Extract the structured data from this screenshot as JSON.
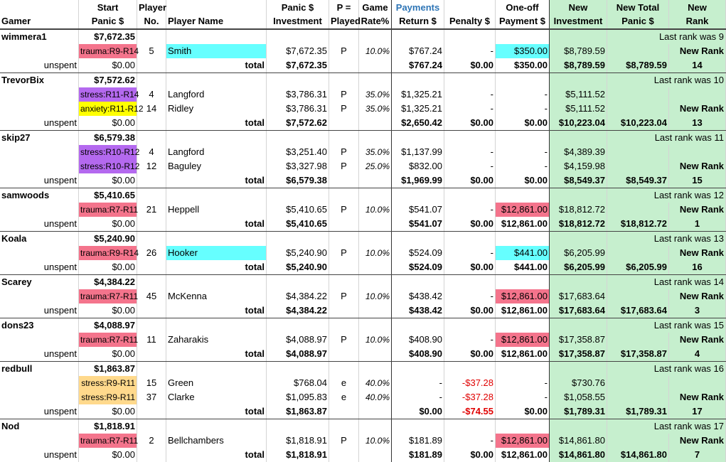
{
  "headers": {
    "gamer": "Gamer",
    "start_panic": [
      "Start",
      "Panic $"
    ],
    "player_no": [
      "Player",
      "No."
    ],
    "player_name": "Player Name",
    "panic_investment": [
      "Panic $",
      "Investment"
    ],
    "played": [
      "P =",
      "Played"
    ],
    "game_rate": [
      "Game",
      "Rate%"
    ],
    "payments": "Payments",
    "return": "Return $",
    "penalty": "Penalty $",
    "oneoff": [
      "One-off",
      "Payment $"
    ],
    "new_investment": [
      "New",
      "Investment"
    ],
    "new_total": [
      "New Total",
      "Panic $"
    ],
    "new_rank": [
      "New",
      "Rank"
    ]
  },
  "labels": {
    "unspent": "unspent",
    "total": "total",
    "new_rank": "New Rank"
  },
  "colors": {
    "trauma": "#f4748c",
    "stress_purple": "#b469ef",
    "anxiety": "#ffff00",
    "stress_orange": "#ffd98c",
    "hooker_cyan": "#66ffff",
    "green": "#c6efce",
    "negative": "#e00000",
    "payments_blue": "#2e75b6"
  },
  "groups": [
    {
      "gamer": "wimmera1",
      "start": "$7,672.35",
      "last_rank": "Last rank was 9",
      "players": [
        {
          "tag": "trauma:R9-R14",
          "tag_color": "trauma",
          "no": "5",
          "name": "Smith",
          "name_bg": "hooker_cyan",
          "investment": "$7,672.35",
          "played": "P",
          "rate": "10.0%",
          "return": "$767.24",
          "penalty": "-",
          "oneoff": "$350.00",
          "oneoff_bg": "hooker_cyan",
          "new_inv": "$8,789.59"
        }
      ],
      "unspent": "$0.00",
      "total_inv": "$7,672.35",
      "total_return": "$767.24",
      "total_penalty": "$0.00",
      "total_oneoff": "$350.00",
      "total_new_inv": "$8,789.59",
      "new_total": "$8,789.59",
      "rank": "14"
    },
    {
      "gamer": "TrevorBix",
      "start": "$7,572.62",
      "last_rank": "Last rank was 10",
      "players": [
        {
          "tag": "stress:R11-R14",
          "tag_color": "stress_purple",
          "no": "4",
          "name": "Langford",
          "investment": "$3,786.31",
          "played": "P",
          "rate": "35.0%",
          "return": "$1,325.21",
          "penalty": "-",
          "oneoff": "-",
          "new_inv": "$5,111.52"
        },
        {
          "tag": "anxiety:R11-R12",
          "tag_color": "anxiety",
          "no": "14",
          "name": "Ridley",
          "investment": "$3,786.31",
          "played": "P",
          "rate": "35.0%",
          "return": "$1,325.21",
          "penalty": "-",
          "oneoff": "-",
          "new_inv": "$5,111.52"
        }
      ],
      "unspent": "$0.00",
      "total_inv": "$7,572.62",
      "total_return": "$2,650.42",
      "total_penalty": "$0.00",
      "total_oneoff": "$0.00",
      "total_new_inv": "$10,223.04",
      "new_total": "$10,223.04",
      "rank": "13"
    },
    {
      "gamer": "skip27",
      "start": "$6,579.38",
      "last_rank": "Last rank was 11",
      "players": [
        {
          "tag": "stress:R10-R12",
          "tag_color": "stress_purple",
          "no": "4",
          "name": "Langford",
          "investment": "$3,251.40",
          "played": "P",
          "rate": "35.0%",
          "return": "$1,137.99",
          "penalty": "-",
          "oneoff": "-",
          "new_inv": "$4,389.39"
        },
        {
          "tag": "stress:R10-R12",
          "tag_color": "stress_purple",
          "no": "12",
          "name": "Baguley",
          "investment": "$3,327.98",
          "played": "P",
          "rate": "25.0%",
          "return": "$832.00",
          "penalty": "-",
          "oneoff": "-",
          "new_inv": "$4,159.98"
        }
      ],
      "unspent": "$0.00",
      "total_inv": "$6,579.38",
      "total_return": "$1,969.99",
      "total_penalty": "$0.00",
      "total_oneoff": "$0.00",
      "total_new_inv": "$8,549.37",
      "new_total": "$8,549.37",
      "rank": "15"
    },
    {
      "gamer": "samwoods",
      "start": "$5,410.65",
      "last_rank": "Last rank was 12",
      "players": [
        {
          "tag": "trauma:R7-R11",
          "tag_color": "trauma",
          "no": "21",
          "name": "Heppell",
          "investment": "$5,410.65",
          "played": "P",
          "rate": "10.0%",
          "return": "$541.07",
          "penalty": "-",
          "oneoff": "$12,861.00",
          "oneoff_bg": "trauma",
          "new_inv": "$18,812.72"
        }
      ],
      "unspent": "$0.00",
      "total_inv": "$5,410.65",
      "total_return": "$541.07",
      "total_penalty": "$0.00",
      "total_oneoff": "$12,861.00",
      "total_new_inv": "$18,812.72",
      "new_total": "$18,812.72",
      "rank": "1"
    },
    {
      "gamer": "Koala",
      "start": "$5,240.90",
      "last_rank": "Last rank was 13",
      "players": [
        {
          "tag": "trauma:R9-R14",
          "tag_color": "trauma",
          "no": "26",
          "name": "Hooker",
          "name_bg": "hooker_cyan",
          "investment": "$5,240.90",
          "played": "P",
          "rate": "10.0%",
          "return": "$524.09",
          "penalty": "-",
          "oneoff": "$441.00",
          "oneoff_bg": "hooker_cyan",
          "new_inv": "$6,205.99"
        }
      ],
      "unspent": "$0.00",
      "total_inv": "$5,240.90",
      "total_return": "$524.09",
      "total_penalty": "$0.00",
      "total_oneoff": "$441.00",
      "total_new_inv": "$6,205.99",
      "new_total": "$6,205.99",
      "rank": "16"
    },
    {
      "gamer": "Scarey",
      "start": "$4,384.22",
      "last_rank": "Last rank was 14",
      "players": [
        {
          "tag": "trauma:R7-R11",
          "tag_color": "trauma",
          "no": "45",
          "name": "McKenna",
          "investment": "$4,384.22",
          "played": "P",
          "rate": "10.0%",
          "return": "$438.42",
          "penalty": "-",
          "oneoff": "$12,861.00",
          "oneoff_bg": "trauma",
          "new_inv": "$17,683.64"
        }
      ],
      "unspent": "$0.00",
      "total_inv": "$4,384.22",
      "total_return": "$438.42",
      "total_penalty": "$0.00",
      "total_oneoff": "$12,861.00",
      "total_new_inv": "$17,683.64",
      "new_total": "$17,683.64",
      "rank": "3"
    },
    {
      "gamer": "dons23",
      "start": "$4,088.97",
      "last_rank": "Last rank was 15",
      "players": [
        {
          "tag": "trauma:R7-R11",
          "tag_color": "trauma",
          "no": "11",
          "name": "Zaharakis",
          "investment": "$4,088.97",
          "played": "P",
          "rate": "10.0%",
          "return": "$408.90",
          "penalty": "-",
          "oneoff": "$12,861.00",
          "oneoff_bg": "trauma",
          "new_inv": "$17,358.87"
        }
      ],
      "unspent": "$0.00",
      "total_inv": "$4,088.97",
      "total_return": "$408.90",
      "total_penalty": "$0.00",
      "total_oneoff": "$12,861.00",
      "total_new_inv": "$17,358.87",
      "new_total": "$17,358.87",
      "rank": "4"
    },
    {
      "gamer": "redbull",
      "start": "$1,863.87",
      "last_rank": "Last rank was 16",
      "players": [
        {
          "tag": "stress:R9-R11",
          "tag_color": "stress_orange",
          "no": "15",
          "name": "Green",
          "investment": "$768.04",
          "played": "e",
          "rate": "40.0%",
          "return": "-",
          "penalty": "-$37.28",
          "penalty_neg": true,
          "oneoff": "-",
          "new_inv": "$730.76"
        },
        {
          "tag": "stress:R9-R11",
          "tag_color": "stress_orange",
          "no": "37",
          "name": "Clarke",
          "investment": "$1,095.83",
          "played": "e",
          "rate": "40.0%",
          "return": "-",
          "penalty": "-$37.28",
          "penalty_neg": true,
          "oneoff": "-",
          "new_inv": "$1,058.55"
        }
      ],
      "unspent": "$0.00",
      "total_inv": "$1,863.87",
      "total_return": "$0.00",
      "total_penalty": "-$74.55",
      "total_penalty_neg": true,
      "total_oneoff": "$0.00",
      "total_new_inv": "$1,789.31",
      "new_total": "$1,789.31",
      "rank": "17"
    },
    {
      "gamer": "Nod",
      "start": "$1,818.91",
      "last_rank": "Last rank was 17",
      "players": [
        {
          "tag": "trauma:R7-R11",
          "tag_color": "trauma",
          "no": "2",
          "name": "Bellchambers",
          "investment": "$1,818.91",
          "played": "P",
          "rate": "10.0%",
          "return": "$181.89",
          "penalty": "-",
          "oneoff": "$12,861.00",
          "oneoff_bg": "trauma",
          "new_inv": "$14,861.80"
        }
      ],
      "unspent": "$0.00",
      "total_inv": "$1,818.91",
      "total_return": "$181.89",
      "total_penalty": "$0.00",
      "total_oneoff": "$12,861.00",
      "total_new_inv": "$14,861.80",
      "new_total": "$14,861.80",
      "rank": "7"
    }
  ]
}
